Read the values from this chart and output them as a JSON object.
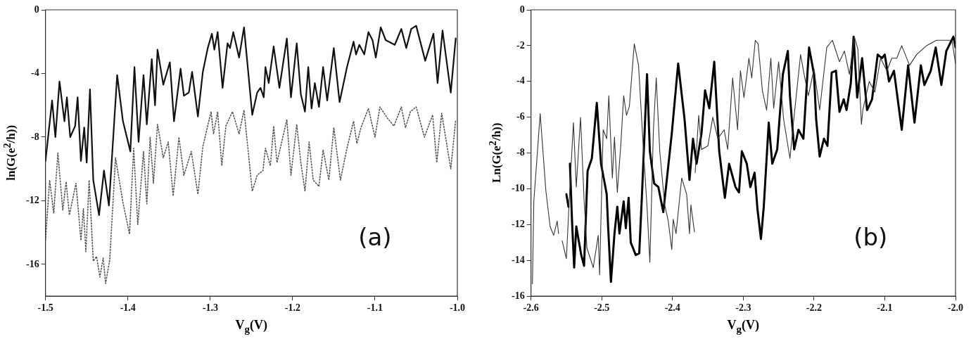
{
  "chart_data": [
    {
      "type": "line",
      "xlabel": "V$_{g}$(V)",
      "ylabel": "ln(G(e$^{2}$/h))",
      "annotations": [
        "(a)"
      ],
      "xlim": [
        -1.5,
        -1.0
      ],
      "xticks": [
        -1.5,
        -1.4,
        -1.3,
        -1.2,
        -1.1,
        {
          "value": -1.0,
          "label": "-1.0"
        }
      ],
      "ylim": [
        -18,
        0
      ],
      "yticks": [
        -16,
        -12,
        -8,
        -4,
        0
      ],
      "grid": false,
      "legend": false,
      "marker": "none",
      "series": [
        {
          "color": "#111111",
          "line_style": "solid",
          "x": [
            -1.5,
            -1.492,
            -1.488,
            -1.483,
            -1.477,
            -1.474,
            -1.47,
            -1.464,
            -1.461,
            -1.457,
            -1.453,
            -1.45,
            -1.446,
            -1.442,
            -1.435,
            -1.429,
            -1.423,
            -1.413,
            -1.406,
            -1.397,
            -1.392,
            -1.387,
            -1.381,
            -1.377,
            -1.371,
            -1.367,
            -1.364,
            -1.357,
            -1.349,
            -1.344,
            -1.336,
            -1.332,
            -1.326,
            -1.322,
            -1.315,
            -1.309,
            -1.303,
            -1.298,
            -1.295,
            -1.291,
            -1.285,
            -1.279,
            -1.276,
            -1.272,
            -1.265,
            -1.259,
            -1.249,
            -1.243,
            -1.239,
            -1.235,
            -1.233,
            -1.229,
            -1.223,
            -1.216,
            -1.207,
            -1.202,
            -1.195,
            -1.19,
            -1.185,
            -1.181,
            -1.177,
            -1.173,
            -1.168,
            -1.163,
            -1.158,
            -1.15,
            -1.143,
            -1.134,
            -1.126,
            -1.123,
            -1.119,
            -1.113,
            -1.108,
            -1.103,
            -1.099,
            -1.093,
            -1.087,
            -1.076,
            -1.068,
            -1.062,
            -1.056,
            -1.05,
            -1.039,
            -1.029,
            -1.024,
            -1.018,
            -1.008,
            -1.002
          ],
          "values": [
            -9.5,
            -5.7,
            -8.0,
            -4.5,
            -7.0,
            -5.5,
            -8.0,
            -7.3,
            -5.5,
            -9.5,
            -7.4,
            -9.6,
            -5.0,
            -10.7,
            -12.9,
            -10.1,
            -12.3,
            -4.1,
            -7.0,
            -8.9,
            -3.6,
            -8.3,
            -4.1,
            -7.2,
            -3.1,
            -6.0,
            -2.5,
            -4.7,
            -3.3,
            -7.0,
            -3.7,
            -5.4,
            -5.2,
            -3.9,
            -6.7,
            -3.9,
            -2.4,
            -1.5,
            -2.5,
            -1.4,
            -4.9,
            -2.1,
            -2.4,
            -1.4,
            -3.0,
            -1.1,
            -6.6,
            -5.2,
            -4.9,
            -5.5,
            -3.6,
            -4.6,
            -2.3,
            -4.9,
            -1.8,
            -5.5,
            -2.1,
            -5.3,
            -6.4,
            -3.6,
            -6.2,
            -4.6,
            -6.1,
            -3.6,
            -5.7,
            -2.4,
            -5.8,
            -3.6,
            -2.0,
            -2.8,
            -2.2,
            -2.8,
            -1.4,
            -1.9,
            -3.0,
            -1.1,
            -1.9,
            -2.2,
            -1.2,
            -2.4,
            -1.2,
            -1.0,
            -3.2,
            -1.5,
            -4.6,
            -1.3,
            -5.2,
            -1.8
          ]
        },
        {
          "color": "#555555",
          "line_style": "dotted",
          "x": [
            -1.5,
            -1.495,
            -1.49,
            -1.485,
            -1.479,
            -1.475,
            -1.471,
            -1.463,
            -1.457,
            -1.454,
            -1.451,
            -1.447,
            -1.442,
            -1.438,
            -1.434,
            -1.43,
            -1.427,
            -1.422,
            -1.415,
            -1.406,
            -1.398,
            -1.393,
            -1.388,
            -1.381,
            -1.377,
            -1.373,
            -1.369,
            -1.364,
            -1.357,
            -1.351,
            -1.345,
            -1.338,
            -1.332,
            -1.323,
            -1.315,
            -1.309,
            -1.299,
            -1.296,
            -1.291,
            -1.286,
            -1.281,
            -1.273,
            -1.265,
            -1.259,
            -1.249,
            -1.243,
            -1.236,
            -1.233,
            -1.227,
            -1.223,
            -1.219,
            -1.207,
            -1.202,
            -1.195,
            -1.19,
            -1.185,
            -1.18,
            -1.175,
            -1.168,
            -1.163,
            -1.156,
            -1.15,
            -1.142,
            -1.134,
            -1.126,
            -1.122,
            -1.117,
            -1.108,
            -1.1,
            -1.094,
            -1.085,
            -1.077,
            -1.068,
            -1.063,
            -1.057,
            -1.05,
            -1.04,
            -1.03,
            -1.025,
            -1.019,
            -1.008,
            -1.002
          ],
          "values": [
            -14.5,
            -10.7,
            -12.8,
            -9.0,
            -12.6,
            -10.8,
            -12.9,
            -10.9,
            -14.5,
            -12.5,
            -15.2,
            -10.7,
            -15.8,
            -15.5,
            -16.8,
            -15.6,
            -17.2,
            -15.7,
            -9.3,
            -12.1,
            -14.1,
            -8.7,
            -13.5,
            -8.9,
            -12.2,
            -8.0,
            -10.9,
            -7.2,
            -9.3,
            -8.3,
            -11.7,
            -8.0,
            -10.4,
            -8.9,
            -11.6,
            -8.6,
            -6.4,
            -7.8,
            -6.4,
            -9.8,
            -7.3,
            -6.4,
            -7.8,
            -6.3,
            -11.4,
            -10.4,
            -10.1,
            -8.7,
            -9.8,
            -7.3,
            -9.6,
            -6.9,
            -10.4,
            -7.2,
            -9.6,
            -11.4,
            -8.3,
            -10.7,
            -11.1,
            -8.8,
            -10.7,
            -7.4,
            -10.7,
            -8.7,
            -7.0,
            -8.4,
            -7.4,
            -6.2,
            -8.0,
            -6.1,
            -6.8,
            -7.3,
            -6.1,
            -7.4,
            -6.4,
            -6.1,
            -8.0,
            -6.6,
            -9.6,
            -6.5,
            -10.0,
            -6.9
          ]
        }
      ]
    },
    {
      "type": "line",
      "xlabel": "V$_{g}$(V)",
      "ylabel": "Ln(G(e$^{2}$/h))",
      "annotations": [
        "(b)"
      ],
      "xlim": [
        -2.6,
        -2.0
      ],
      "xticks": [
        -2.6,
        -2.5,
        -2.4,
        -2.3,
        -2.2,
        -2.1,
        {
          "value": -2.0,
          "label": "-2.0"
        }
      ],
      "ylim": [
        -16,
        0
      ],
      "yticks": [
        -16,
        -14,
        -12,
        -10,
        -8,
        -6,
        -4,
        -2,
        0
      ],
      "grid": false,
      "legend": false,
      "marker": "none",
      "series": [
        {
          "color": "#333333",
          "line_style": "solid",
          "x": [
            -2.598,
            -2.596,
            -2.587,
            -2.579,
            -2.573,
            -2.568,
            -2.563,
            -2.561,
            -2.558,
            -2.556,
            -2.55,
            -2.545,
            -2.54,
            -2.536,
            -2.53,
            -2.525,
            -2.521,
            -2.512,
            -2.505,
            -2.503,
            -2.498,
            -2.493,
            -2.49,
            -2.485,
            -2.482,
            -2.478,
            -2.473,
            -2.469,
            -2.465,
            -2.461,
            -2.454,
            -2.448,
            -2.441,
            -2.436,
            -2.432,
            -2.427,
            -2.423,
            -2.418,
            -2.411,
            -2.406,
            -2.401,
            -2.399,
            -2.395,
            -2.387,
            -2.38,
            -2.376,
            -2.374,
            -2.369,
            -2.3685,
            -2.368,
            -2.363,
            -2.359,
            -2.35,
            -2.343,
            -2.336,
            -2.327,
            -2.322,
            -2.315,
            -2.308,
            -2.304,
            -2.299,
            -2.292,
            -2.288,
            -2.283,
            -2.279,
            -2.273,
            -2.267,
            -2.261,
            -2.257,
            -2.25,
            -2.243,
            -2.234,
            -2.228,
            -2.219,
            -2.214,
            -2.208,
            -2.2,
            -2.192,
            -2.182,
            -2.174,
            -2.169,
            -2.164,
            -2.157,
            -2.15,
            -2.143,
            -2.138,
            -2.133,
            -2.131,
            -2.122,
            -2.114,
            -2.106,
            -2.097,
            -2.09,
            -2.083,
            -2.076,
            -2.065,
            -2.055,
            -2.041,
            -2.027,
            -2.016,
            -2.005,
            -2.0
          ],
          "values": [
            -15.3,
            -10.7,
            -5.8,
            -10.1,
            -12.1,
            -12.6,
            -11.8,
            -12.5,
            null,
            -12.9,
            -13.9,
            -9.9,
            -6.3,
            -9.9,
            -6.0,
            -10.6,
            -13.3,
            -14.4,
            -12.6,
            -14.8,
            -6.7,
            -7.2,
            -4.8,
            -9.4,
            -7.1,
            -10.2,
            -7.5,
            -4.8,
            -5.9,
            -5.4,
            -1.9,
            -3.1,
            -7.9,
            -11.0,
            -14.1,
            -6.7,
            -3.8,
            -7.9,
            -10.9,
            -11.8,
            -13.4,
            -11.7,
            -12.5,
            -9.4,
            -10.3,
            -12.5,
            -10.9,
            -12.4,
            null,
            -9.1,
            -5.9,
            -7.8,
            -7.6,
            -6.0,
            -7.2,
            -6.7,
            -7.8,
            -3.8,
            -6.7,
            -3.4,
            -4.9,
            -2.7,
            -3.8,
            -1.7,
            -1.9,
            -4.5,
            -5.6,
            -2.7,
            -5.5,
            -2.9,
            -6.1,
            -8.3,
            -5.9,
            -2.5,
            -3.6,
            -4.8,
            -3.3,
            -5.6,
            -2.1,
            -1.7,
            -2.3,
            -2.9,
            -2.3,
            -3.6,
            -1.5,
            -2.2,
            -6.4,
            -5.6,
            -4.0,
            -4.6,
            -2.7,
            -3.4,
            -2.7,
            -2.7,
            -2.0,
            -3.1,
            -2.5,
            -2.0,
            -1.7,
            -1.7,
            -1.7,
            -3.0
          ]
        },
        {
          "color": "#000000",
          "line_style": "solid",
          "x": [
            -2.55,
            -2.547,
            -2.546,
            -2.545,
            -2.542,
            -2.539,
            -2.536,
            -2.529,
            -2.525,
            -2.52,
            -2.514,
            -2.507,
            -2.501,
            -2.493,
            -2.491,
            -2.487,
            -2.482,
            -2.478,
            -2.475,
            -2.469,
            -2.466,
            -2.462,
            -2.459,
            -2.452,
            -2.447,
            -2.443,
            -2.436,
            -2.432,
            -2.426,
            -2.42,
            -2.413,
            -2.401,
            -2.392,
            -2.383,
            -2.376,
            -2.371,
            -2.366,
            -2.359,
            -2.354,
            -2.348,
            -2.341,
            -2.334,
            -2.326,
            -2.32,
            -2.311,
            -2.306,
            -2.302,
            -2.295,
            -2.29,
            -2.284,
            -2.28,
            -2.275,
            -2.271,
            -2.264,
            -2.259,
            -2.252,
            -2.244,
            -2.237,
            -2.234,
            -2.228,
            -2.222,
            -2.215,
            -2.207,
            -2.2,
            -2.197,
            -2.192,
            -2.186,
            -2.181,
            -2.175,
            -2.169,
            -2.164,
            -2.158,
            -2.154,
            -2.148,
            -2.144,
            -2.139,
            -2.132,
            -2.125,
            -2.118,
            -2.11,
            -2.104,
            -2.1,
            -2.094,
            -2.087,
            -2.076,
            -2.067,
            -2.058,
            -2.049,
            -2.044,
            -2.035,
            -2.028,
            -2.02,
            -2.013,
            -2.003,
            -2.0
          ],
          "values": [
            -10.3,
            -11.0,
            null,
            -8.6,
            -11.8,
            -14.4,
            -12.1,
            -13.7,
            -14.3,
            -9.0,
            -8.3,
            -5.2,
            -8.6,
            -10.3,
            -12.1,
            -15.2,
            -12.5,
            -11.0,
            -12.5,
            -10.7,
            -12.2,
            -10.5,
            -13.0,
            -13.7,
            -13.6,
            -10.2,
            -3.6,
            -7.9,
            -9.7,
            -9.9,
            -11.3,
            -6.9,
            -3.0,
            -6.1,
            -9.5,
            -7.2,
            -8.6,
            -6.9,
            -4.5,
            -5.5,
            -2.9,
            -7.9,
            -10.5,
            -8.6,
            -9.9,
            -10.2,
            -7.9,
            -8.6,
            -9.9,
            -9.1,
            -11.1,
            -12.8,
            -11.0,
            -6.3,
            -8.6,
            -7.8,
            -3.6,
            -2.3,
            -4.8,
            -7.8,
            -6.7,
            -7.2,
            -2.1,
            -3.6,
            -6.1,
            -8.2,
            -7.2,
            -7.6,
            -3.5,
            -3.4,
            -5.7,
            -5.0,
            -5.6,
            -4.1,
            -1.5,
            -4.9,
            -2.7,
            -5.6,
            -5.0,
            -2.5,
            -2.7,
            -2.5,
            -4.0,
            -3.4,
            -6.7,
            -3.1,
            -6.3,
            -3.1,
            -4.2,
            -3.4,
            -2.1,
            -4.2,
            -2.3,
            -1.5,
            -2.1
          ]
        }
      ]
    }
  ]
}
